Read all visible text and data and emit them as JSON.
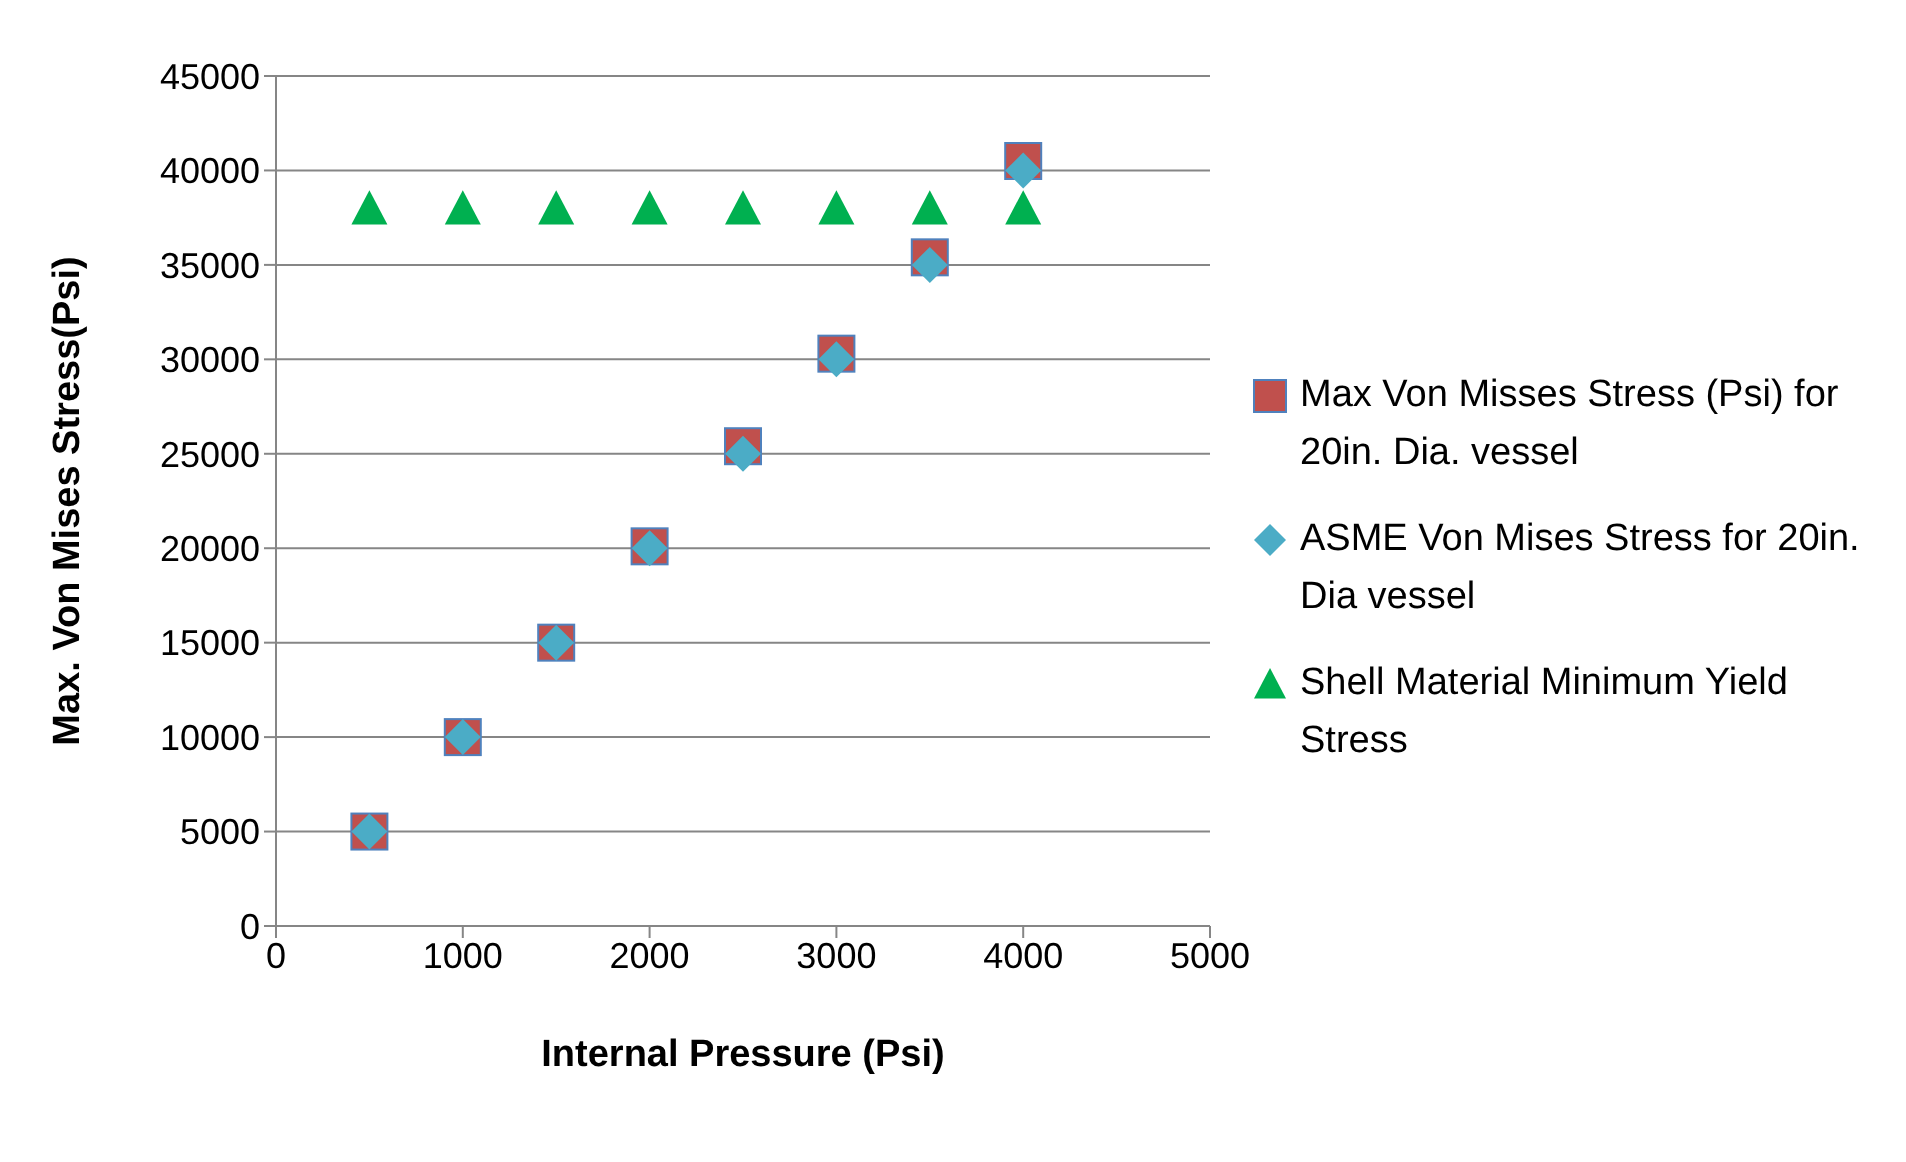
{
  "chart_data": {
    "type": "scatter",
    "xlabel": "Internal Pressure (Psi)",
    "ylabel": "Max. Von Mises Stress(Psi)",
    "x": [
      500,
      1000,
      1500,
      2000,
      2500,
      3000,
      3500,
      4000
    ],
    "series": [
      {
        "name": "Max Von Misses Stress (Psi) for 20in. Dia. vessel",
        "color": "#c0504d",
        "marker": "square",
        "values": [
          5000,
          10000,
          15000,
          20100,
          25400,
          30300,
          35400,
          40500
        ]
      },
      {
        "name": "ASME  Von Mises Stress for 20in. Dia vessel",
        "color": "#4bacc6",
        "marker": "diamond",
        "values": [
          5000,
          10000,
          15000,
          20000,
          25000,
          30000,
          35000,
          40000
        ]
      },
      {
        "name": "Shell Material Minimum Yield Stress",
        "color": "#00b050",
        "marker": "triangle",
        "values": [
          38000,
          38000,
          38000,
          38000,
          38000,
          38000,
          38000,
          38000
        ]
      }
    ],
    "xlim": [
      0,
      5000
    ],
    "xticks": [
      0,
      1000,
      2000,
      3000,
      4000,
      5000
    ],
    "ylim": [
      0,
      45000
    ],
    "yticks": [
      0,
      5000,
      10000,
      15000,
      20000,
      25000,
      30000,
      35000,
      40000,
      45000
    ],
    "grid": "y",
    "legend": "right"
  }
}
